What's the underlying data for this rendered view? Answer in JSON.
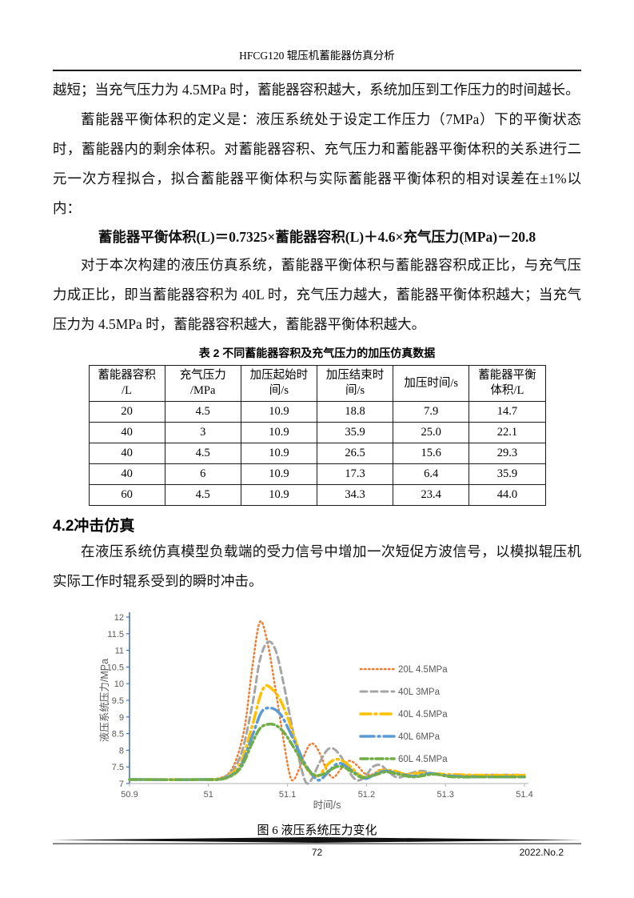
{
  "page": {
    "header_title": "HFCG120 辊压机蓄能器仿真分析",
    "footer": {
      "page_number": "72",
      "issue": "2022.No.2"
    }
  },
  "body": {
    "p1": "越短；当充气压力为 4.5MPa 时，蓄能器容积越大，系统加压到工作压力的时间越长。",
    "p2": "蓄能器平衡体积的定义是：液压系统处于设定工作压力（7MPa）下的平衡状态时，蓄能器内的剩余体积。对蓄能器容积、充气压力和蓄能器平衡体积的关系进行二元一次方程拟合，拟合蓄能器平衡体积与实际蓄能器平衡体积的相对误差在±1%以内：",
    "formula": "蓄能器平衡体积(L)＝0.7325×蓄能器容积(L)＋4.6×充气压力(MPa)－20.8",
    "p3": "对于本次构建的液压仿真系统，蓄能器平衡体积与蓄能器容积成正比，与充气压力成正比，即当蓄能器容积为 40L 时，充气压力越大，蓄能器平衡体积越大；当充气压力为 4.5MPa 时，蓄能器容积越大，蓄能器平衡体积越大。",
    "section_heading": "4.2冲击仿真",
    "p4": "在液压系统仿真模型负载端的受力信号中增加一次短促方波信号，以模拟辊压机实际工作时辊系受到的瞬时冲击。"
  },
  "table": {
    "caption": "表 2 不同蓄能器容积及充气压力的加压仿真数据",
    "headers": [
      "蓄能器容积\n/L",
      "充气压力\n/MPa",
      "加压起始时\n间/s",
      "加压结束时\n间/s",
      "加压时间/s",
      "蓄能器平衡\n体积/L"
    ],
    "rows": [
      [
        "20",
        "4.5",
        "10.9",
        "18.8",
        "7.9",
        "14.7"
      ],
      [
        "40",
        "3",
        "10.9",
        "35.9",
        "25.0",
        "22.1"
      ],
      [
        "40",
        "4.5",
        "10.9",
        "26.5",
        "15.6",
        "29.3"
      ],
      [
        "40",
        "6",
        "10.9",
        "17.3",
        "6.4",
        "35.9"
      ],
      [
        "60",
        "4.5",
        "10.9",
        "34.3",
        "23.4",
        "44.0"
      ]
    ]
  },
  "figure": {
    "caption": "图 6 液压系统压力变化"
  },
  "chart_data": {
    "type": "line",
    "title": "",
    "xlabel": "时间/s",
    "ylabel": "液压系统压力/MPa",
    "xlim": [
      50.9,
      51.4
    ],
    "ylim": [
      7,
      12
    ],
    "xtick_step": 0.1,
    "ytick_step": 0.5,
    "xticks": [
      "50.9",
      "51",
      "51.1",
      "51.2",
      "51.3",
      "51.4"
    ],
    "yticks": [
      "7",
      "7.5",
      "8",
      "8.5",
      "9",
      "9.5",
      "10",
      "10.5",
      "11",
      "11.5",
      "12"
    ],
    "grid": false,
    "legend_position": "center-right",
    "axis_colors": {
      "y_axis": "#4472C4",
      "x_axis": "#BFBFBF",
      "tick_label": "#595959"
    },
    "series": [
      {
        "name": "20L 4.5MPa",
        "color": "#ED7D31",
        "dash": "1.5 3.5",
        "width": 2.5,
        "points": [
          [
            50.9,
            7.12
          ],
          [
            50.98,
            7.12
          ],
          [
            51.01,
            7.14
          ],
          [
            51.03,
            7.45
          ],
          [
            51.045,
            8.6
          ],
          [
            51.055,
            10.4
          ],
          [
            51.065,
            11.85
          ],
          [
            51.075,
            11.2
          ],
          [
            51.085,
            9.8
          ],
          [
            51.095,
            8.3
          ],
          [
            51.103,
            7.25
          ],
          [
            51.108,
            7.12
          ],
          [
            51.115,
            7.45
          ],
          [
            51.125,
            8.05
          ],
          [
            51.132,
            8.2
          ],
          [
            51.14,
            7.95
          ],
          [
            51.15,
            7.4
          ],
          [
            51.158,
            7.18
          ],
          [
            51.168,
            7.45
          ],
          [
            51.178,
            7.68
          ],
          [
            51.188,
            7.55
          ],
          [
            51.198,
            7.3
          ],
          [
            51.208,
            7.28
          ],
          [
            51.218,
            7.42
          ],
          [
            51.228,
            7.38
          ],
          [
            51.245,
            7.28
          ],
          [
            51.27,
            7.32
          ],
          [
            51.3,
            7.26
          ],
          [
            51.35,
            7.24
          ],
          [
            51.4,
            7.24
          ]
        ]
      },
      {
        "name": "40L 3MPa",
        "color": "#A5A5A5",
        "dash": "8 5",
        "width": 3,
        "points": [
          [
            50.9,
            7.12
          ],
          [
            50.99,
            7.12
          ],
          [
            51.02,
            7.2
          ],
          [
            51.04,
            7.8
          ],
          [
            51.055,
            9.3
          ],
          [
            51.065,
            10.7
          ],
          [
            51.075,
            11.25
          ],
          [
            51.085,
            11.0
          ],
          [
            51.095,
            10.0
          ],
          [
            51.105,
            8.8
          ],
          [
            51.115,
            7.7
          ],
          [
            51.123,
            7.05
          ],
          [
            51.13,
            7.1
          ],
          [
            51.14,
            7.6
          ],
          [
            51.15,
            8.0
          ],
          [
            51.158,
            8.05
          ],
          [
            51.168,
            7.8
          ],
          [
            51.178,
            7.35
          ],
          [
            51.188,
            7.1
          ],
          [
            51.198,
            7.2
          ],
          [
            51.208,
            7.5
          ],
          [
            51.218,
            7.55
          ],
          [
            51.228,
            7.35
          ],
          [
            51.24,
            7.18
          ],
          [
            51.255,
            7.3
          ],
          [
            51.27,
            7.38
          ],
          [
            51.285,
            7.3
          ],
          [
            51.31,
            7.22
          ],
          [
            51.35,
            7.26
          ],
          [
            51.4,
            7.26
          ]
        ]
      },
      {
        "name": "40L 4.5MPa",
        "color": "#FFC000",
        "dash": "13 5 2 5",
        "width": 3.5,
        "points": [
          [
            50.9,
            7.12
          ],
          [
            50.99,
            7.12
          ],
          [
            51.02,
            7.18
          ],
          [
            51.04,
            7.6
          ],
          [
            51.055,
            8.7
          ],
          [
            51.065,
            9.6
          ],
          [
            51.072,
            9.93
          ],
          [
            51.08,
            9.85
          ],
          [
            51.09,
            9.55
          ],
          [
            51.1,
            9.0
          ],
          [
            51.11,
            8.3
          ],
          [
            51.12,
            7.65
          ],
          [
            51.13,
            7.28
          ],
          [
            51.14,
            7.25
          ],
          [
            51.15,
            7.55
          ],
          [
            51.16,
            7.72
          ],
          [
            51.17,
            7.68
          ],
          [
            51.18,
            7.5
          ],
          [
            51.19,
            7.28
          ],
          [
            51.2,
            7.18
          ],
          [
            51.21,
            7.28
          ],
          [
            51.22,
            7.4
          ],
          [
            51.235,
            7.38
          ],
          [
            51.25,
            7.28
          ],
          [
            51.27,
            7.32
          ],
          [
            51.3,
            7.28
          ],
          [
            51.35,
            7.25
          ],
          [
            51.4,
            7.25
          ]
        ]
      },
      {
        "name": "40L 6MPa",
        "color": "#5B9BD5",
        "dash": "17 5 2 5",
        "width": 3.5,
        "points": [
          [
            50.9,
            7.12
          ],
          [
            50.99,
            7.12
          ],
          [
            51.02,
            7.16
          ],
          [
            51.04,
            7.5
          ],
          [
            51.055,
            8.4
          ],
          [
            51.065,
            9.05
          ],
          [
            51.072,
            9.25
          ],
          [
            51.082,
            9.25
          ],
          [
            51.092,
            9.05
          ],
          [
            51.102,
            8.6
          ],
          [
            51.112,
            8.1
          ],
          [
            51.122,
            7.6
          ],
          [
            51.132,
            7.25
          ],
          [
            51.14,
            7.1
          ],
          [
            51.15,
            7.3
          ],
          [
            51.16,
            7.55
          ],
          [
            51.168,
            7.6
          ],
          [
            51.178,
            7.45
          ],
          [
            51.19,
            7.25
          ],
          [
            51.2,
            7.15
          ],
          [
            51.212,
            7.3
          ],
          [
            51.225,
            7.38
          ],
          [
            51.24,
            7.3
          ],
          [
            51.26,
            7.22
          ],
          [
            51.28,
            7.3
          ],
          [
            51.31,
            7.22
          ],
          [
            51.35,
            7.2
          ],
          [
            51.4,
            7.2
          ]
        ]
      },
      {
        "name": "60L 4.5MPa",
        "color": "#70AD47",
        "dash": "9 4 2 4",
        "width": 3.5,
        "points": [
          [
            50.9,
            7.12
          ],
          [
            50.99,
            7.12
          ],
          [
            51.02,
            7.15
          ],
          [
            51.04,
            7.45
          ],
          [
            51.055,
            8.2
          ],
          [
            51.065,
            8.65
          ],
          [
            51.075,
            8.78
          ],
          [
            51.085,
            8.75
          ],
          [
            51.095,
            8.55
          ],
          [
            51.105,
            8.2
          ],
          [
            51.115,
            7.8
          ],
          [
            51.125,
            7.45
          ],
          [
            51.135,
            7.25
          ],
          [
            51.145,
            7.28
          ],
          [
            51.155,
            7.42
          ],
          [
            51.165,
            7.52
          ],
          [
            51.175,
            7.45
          ],
          [
            51.185,
            7.3
          ],
          [
            51.195,
            7.18
          ],
          [
            51.21,
            7.25
          ],
          [
            51.225,
            7.35
          ],
          [
            51.24,
            7.28
          ],
          [
            51.26,
            7.2
          ],
          [
            51.285,
            7.28
          ],
          [
            51.31,
            7.2
          ],
          [
            51.35,
            7.2
          ],
          [
            51.4,
            7.2
          ]
        ]
      }
    ]
  }
}
